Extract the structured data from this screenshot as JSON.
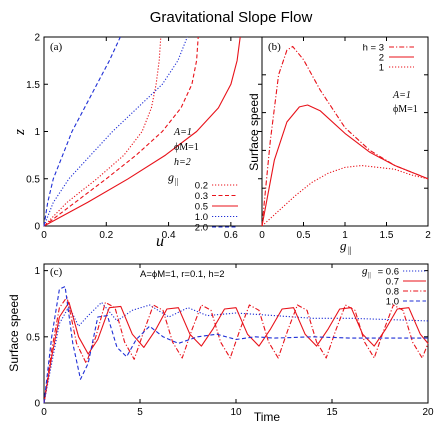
{
  "title": "Gravitational Slope Flow",
  "colors": {
    "blue": "#1f2fd6",
    "red": "#e8121a",
    "axis": "#000000"
  },
  "chart_data": [
    {
      "panel": "(a)",
      "type": "line",
      "xlabel": "u",
      "ylabel": "z",
      "xlim": [
        0,
        0.7
      ],
      "ylim": [
        0,
        2
      ],
      "xticks": [
        0,
        0.2,
        0.4,
        0.6
      ],
      "yticks": [
        0,
        0.5,
        1,
        1.5,
        2
      ],
      "params": [
        "A=1",
        "ϕM=1",
        "h=2"
      ],
      "legend_title": "g||",
      "series": [
        {
          "name": "0.2",
          "color": "#e8121a",
          "style": "dotted",
          "points": [
            [
              0,
              0
            ],
            [
              0.074,
              0.25
            ],
            [
              0.17,
              0.5
            ],
            [
              0.257,
              0.75
            ],
            [
              0.315,
              1.0
            ],
            [
              0.345,
              1.25
            ],
            [
              0.36,
              1.5
            ],
            [
              0.37,
              1.75
            ],
            [
              0.375,
              2.0
            ]
          ]
        },
        {
          "name": "0.3",
          "color": "#e8121a",
          "style": "dashed",
          "points": [
            [
              0,
              0
            ],
            [
              0.1,
              0.25
            ],
            [
              0.2,
              0.5
            ],
            [
              0.296,
              0.75
            ],
            [
              0.38,
              1.0
            ],
            [
              0.44,
              1.25
            ],
            [
              0.475,
              1.5
            ],
            [
              0.49,
              1.75
            ],
            [
              0.495,
              2.0
            ]
          ]
        },
        {
          "name": "0.5",
          "color": "#e8121a",
          "style": "solid",
          "points": [
            [
              0,
              0
            ],
            [
              0.14,
              0.25
            ],
            [
              0.27,
              0.5
            ],
            [
              0.39,
              0.75
            ],
            [
              0.49,
              1.0
            ],
            [
              0.56,
              1.25
            ],
            [
              0.6,
              1.5
            ],
            [
              0.62,
              1.75
            ],
            [
              0.63,
              2.0
            ]
          ]
        },
        {
          "name": "1.0",
          "color": "#1f2fd6",
          "style": "dotted",
          "points": [
            [
              0,
              0
            ],
            [
              0.03,
              0.25
            ],
            [
              0.08,
              0.5
            ],
            [
              0.15,
              0.75
            ],
            [
              0.22,
              1.0
            ],
            [
              0.3,
              1.25
            ],
            [
              0.38,
              1.5
            ],
            [
              0.43,
              1.75
            ],
            [
              0.46,
              2.0
            ]
          ]
        },
        {
          "name": "2.0",
          "color": "#1f2fd6",
          "style": "dashed",
          "points": [
            [
              0,
              0
            ],
            [
              0.012,
              0.25
            ],
            [
              0.03,
              0.5
            ],
            [
              0.06,
              0.75
            ],
            [
              0.09,
              1.0
            ],
            [
              0.13,
              1.25
            ],
            [
              0.17,
              1.5
            ],
            [
              0.21,
              1.75
            ],
            [
              0.245,
              2.0
            ]
          ]
        }
      ]
    },
    {
      "panel": "(b)",
      "type": "line",
      "xlabel": "g||",
      "ylabel": "Surface speed",
      "xlim": [
        0,
        2
      ],
      "ylim": [
        0,
        1
      ],
      "xticks": [
        0,
        0.5,
        1,
        1.5,
        2
      ],
      "yticks": [
        0,
        0.2,
        0.4,
        0.6,
        0.8,
        1
      ],
      "params": [
        "A=1",
        "ϕM=1"
      ],
      "series": [
        {
          "name": "h = 3",
          "color": "#e8121a",
          "style": "dashdot",
          "points": [
            [
              0,
              0
            ],
            [
              0.1,
              0.45
            ],
            [
              0.2,
              0.8
            ],
            [
              0.3,
              0.93
            ],
            [
              0.37,
              0.95
            ],
            [
              0.5,
              0.88
            ],
            [
              0.7,
              0.72
            ],
            [
              1.0,
              0.52
            ],
            [
              1.3,
              0.4
            ],
            [
              1.6,
              0.32
            ],
            [
              2.0,
              0.25
            ]
          ]
        },
        {
          "name": "2",
          "color": "#e8121a",
          "style": "solid",
          "points": [
            [
              0,
              0
            ],
            [
              0.15,
              0.35
            ],
            [
              0.3,
              0.55
            ],
            [
              0.45,
              0.63
            ],
            [
              0.55,
              0.64
            ],
            [
              0.7,
              0.61
            ],
            [
              1.0,
              0.49
            ],
            [
              1.3,
              0.39
            ],
            [
              1.6,
              0.32
            ],
            [
              2.0,
              0.25
            ]
          ]
        },
        {
          "name": "1",
          "color": "#e8121a",
          "style": "dotted",
          "points": [
            [
              0,
              0
            ],
            [
              0.2,
              0.08
            ],
            [
              0.4,
              0.16
            ],
            [
              0.6,
              0.23
            ],
            [
              0.8,
              0.28
            ],
            [
              1.0,
              0.31
            ],
            [
              1.2,
              0.32
            ],
            [
              1.4,
              0.31
            ],
            [
              1.6,
              0.3
            ],
            [
              1.8,
              0.27
            ],
            [
              2.0,
              0.25
            ]
          ]
        }
      ]
    },
    {
      "panel": "(c)",
      "type": "line",
      "xlabel": "Time",
      "ylabel": "Surface speed",
      "xlim": [
        0,
        20
      ],
      "ylim": [
        0,
        1.05
      ],
      "xticks": [
        0,
        5,
        10,
        15,
        20
      ],
      "yticks": [
        0,
        0.5,
        1
      ],
      "params": "A=ϕM=1,  r=0.1,  h=2",
      "legend_title": "g||",
      "series": [
        {
          "name": "= 0.6",
          "color": "#1f2fd6",
          "style": "dotted",
          "points": [
            [
              0,
              0
            ],
            [
              0.4,
              0.3
            ],
            [
              0.8,
              0.6
            ],
            [
              1.3,
              0.73
            ],
            [
              1.8,
              0.58
            ],
            [
              2.3,
              0.66
            ],
            [
              3,
              0.76
            ],
            [
              3.8,
              0.62
            ],
            [
              4.6,
              0.7
            ],
            [
              5.5,
              0.74
            ],
            [
              6.5,
              0.65
            ],
            [
              7.5,
              0.72
            ],
            [
              8.5,
              0.66
            ],
            [
              10,
              0.68
            ],
            [
              12,
              0.66
            ],
            [
              14,
              0.64
            ],
            [
              16,
              0.64
            ],
            [
              18,
              0.63
            ],
            [
              20,
              0.62
            ]
          ]
        },
        {
          "name": "0.7",
          "color": "#e8121a",
          "style": "solid",
          "points": [
            [
              0,
              0
            ],
            [
              0.4,
              0.35
            ],
            [
              0.8,
              0.65
            ],
            [
              1.3,
              0.76
            ],
            [
              1.8,
              0.5
            ],
            [
              2.3,
              0.37
            ],
            [
              2.8,
              0.48
            ],
            [
              3.4,
              0.72
            ],
            [
              4.0,
              0.73
            ],
            [
              4.6,
              0.52
            ],
            [
              5.2,
              0.42
            ],
            [
              5.8,
              0.55
            ],
            [
              6.4,
              0.71
            ],
            [
              7.0,
              0.72
            ],
            [
              7.6,
              0.52
            ],
            [
              8.2,
              0.43
            ],
            [
              8.8,
              0.56
            ],
            [
              9.4,
              0.71
            ],
            [
              10.0,
              0.72
            ],
            [
              10.6,
              0.52
            ],
            [
              11.2,
              0.43
            ],
            [
              11.8,
              0.56
            ],
            [
              12.4,
              0.71
            ],
            [
              13.0,
              0.72
            ],
            [
              13.6,
              0.52
            ],
            [
              14.2,
              0.43
            ],
            [
              14.8,
              0.56
            ],
            [
              15.4,
              0.71
            ],
            [
              16.0,
              0.72
            ],
            [
              16.6,
              0.52
            ],
            [
              17.2,
              0.43
            ],
            [
              17.8,
              0.56
            ],
            [
              18.4,
              0.71
            ],
            [
              19.0,
              0.72
            ],
            [
              19.6,
              0.52
            ],
            [
              20.0,
              0.45
            ]
          ]
        },
        {
          "name": "0.8",
          "color": "#e8121a",
          "style": "dashdot",
          "points": [
            [
              0,
              0
            ],
            [
              0.4,
              0.4
            ],
            [
              0.8,
              0.72
            ],
            [
              1.2,
              0.8
            ],
            [
              1.7,
              0.45
            ],
            [
              2.2,
              0.3
            ],
            [
              2.7,
              0.5
            ],
            [
              3.2,
              0.76
            ],
            [
              3.7,
              0.72
            ],
            [
              4.2,
              0.46
            ],
            [
              4.7,
              0.33
            ],
            [
              5.2,
              0.54
            ],
            [
              5.7,
              0.74
            ],
            [
              6.2,
              0.7
            ],
            [
              6.7,
              0.46
            ],
            [
              7.2,
              0.34
            ],
            [
              7.7,
              0.55
            ],
            [
              8.2,
              0.74
            ],
            [
              8.7,
              0.7
            ],
            [
              9.2,
              0.46
            ],
            [
              9.7,
              0.34
            ],
            [
              10.2,
              0.55
            ],
            [
              10.7,
              0.74
            ],
            [
              11.2,
              0.7
            ],
            [
              11.7,
              0.46
            ],
            [
              12.2,
              0.34
            ],
            [
              12.7,
              0.55
            ],
            [
              13.2,
              0.74
            ],
            [
              13.7,
              0.7
            ],
            [
              14.2,
              0.46
            ],
            [
              14.7,
              0.34
            ],
            [
              15.2,
              0.55
            ],
            [
              15.7,
              0.74
            ],
            [
              16.2,
              0.7
            ],
            [
              16.7,
              0.46
            ],
            [
              17.2,
              0.34
            ],
            [
              17.7,
              0.55
            ],
            [
              18.2,
              0.74
            ],
            [
              18.7,
              0.7
            ],
            [
              19.2,
              0.46
            ],
            [
              19.7,
              0.34
            ],
            [
              20,
              0.45
            ]
          ]
        },
        {
          "name": "1.0",
          "color": "#1f2fd6",
          "style": "dashed",
          "points": [
            [
              0,
              0
            ],
            [
              0.4,
              0.5
            ],
            [
              0.8,
              0.86
            ],
            [
              1.1,
              0.88
            ],
            [
              1.5,
              0.45
            ],
            [
              1.9,
              0.18
            ],
            [
              2.3,
              0.3
            ],
            [
              2.8,
              0.65
            ],
            [
              3.3,
              0.66
            ],
            [
              3.8,
              0.42
            ],
            [
              4.3,
              0.35
            ],
            [
              4.8,
              0.48
            ],
            [
              5.5,
              0.58
            ],
            [
              6.2,
              0.5
            ],
            [
              7,
              0.45
            ],
            [
              8,
              0.5
            ],
            [
              9,
              0.52
            ],
            [
              10,
              0.48
            ],
            [
              11,
              0.5
            ],
            [
              12,
              0.49
            ],
            [
              14,
              0.5
            ],
            [
              16,
              0.49
            ],
            [
              18,
              0.49
            ],
            [
              20,
              0.49
            ]
          ]
        }
      ]
    }
  ]
}
